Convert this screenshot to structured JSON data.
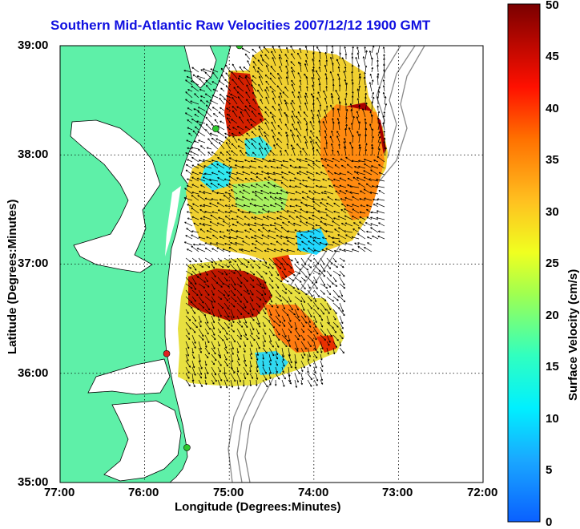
{
  "title": "Southern Mid-Atlantic Raw Velocities 2007/12/12 1900 GMT",
  "x_axis": {
    "label": "Longitude (Degrees:Minutes)",
    "ticks": [
      "77:00",
      "76:00",
      "75:00",
      "74:00",
      "73:00",
      "72:00"
    ]
  },
  "y_axis": {
    "label": "Latitude (Degrees:Minutes)",
    "ticks": [
      "39:00",
      "38:00",
      "37:00",
      "36:00",
      "35:00"
    ]
  },
  "colorbar": {
    "label": "Surface Velocity (cm/s)",
    "ticks": [
      "0",
      "5",
      "10",
      "15",
      "20",
      "25",
      "30",
      "35",
      "40",
      "45",
      "50"
    ],
    "range": [
      0,
      50
    ],
    "colors": [
      "#0a7bff",
      "#00e0ff",
      "#30ffc0",
      "#c8ff30",
      "#ffd020",
      "#ff7000",
      "#ff1000",
      "#8a0000"
    ]
  },
  "map": {
    "lon_range": [
      -77,
      -72
    ],
    "lat_range": [
      35,
      39
    ],
    "grid": true,
    "land_color": "#5ef0a8",
    "coastline_color": "#000000",
    "bathymetry_color": "#888888",
    "stations": [
      {
        "color": "#2dc82d",
        "lon": -74.88,
        "lat": 39.0
      },
      {
        "color": "#2dc82d",
        "lon": -75.16,
        "lat": 38.24
      },
      {
        "color": "#e02020",
        "lon": -75.74,
        "lat": 36.18
      },
      {
        "color": "#2dc82d",
        "lon": -75.5,
        "lat": 35.32
      }
    ]
  }
}
